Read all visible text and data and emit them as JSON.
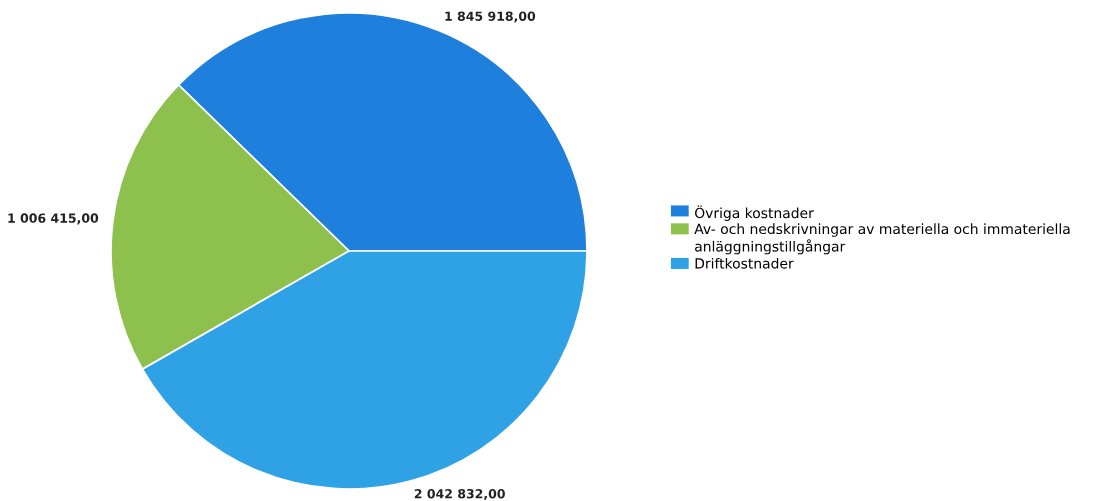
{
  "chart_data": {
    "type": "pie",
    "categories": [
      "Övriga kostnader",
      "Av- och nedskrivningar av materiella och immateriella anläggningstillgångar",
      "Driftkostnader"
    ],
    "values": [
      1845918.0,
      1006415.0,
      2042832.0
    ],
    "value_labels": [
      "1 845 918,00",
      "1 006 415,00",
      "2 042 832,00"
    ],
    "colors": [
      "#1e7fdc",
      "#8dc04c",
      "#2fa2e6"
    ],
    "legend": "right"
  }
}
